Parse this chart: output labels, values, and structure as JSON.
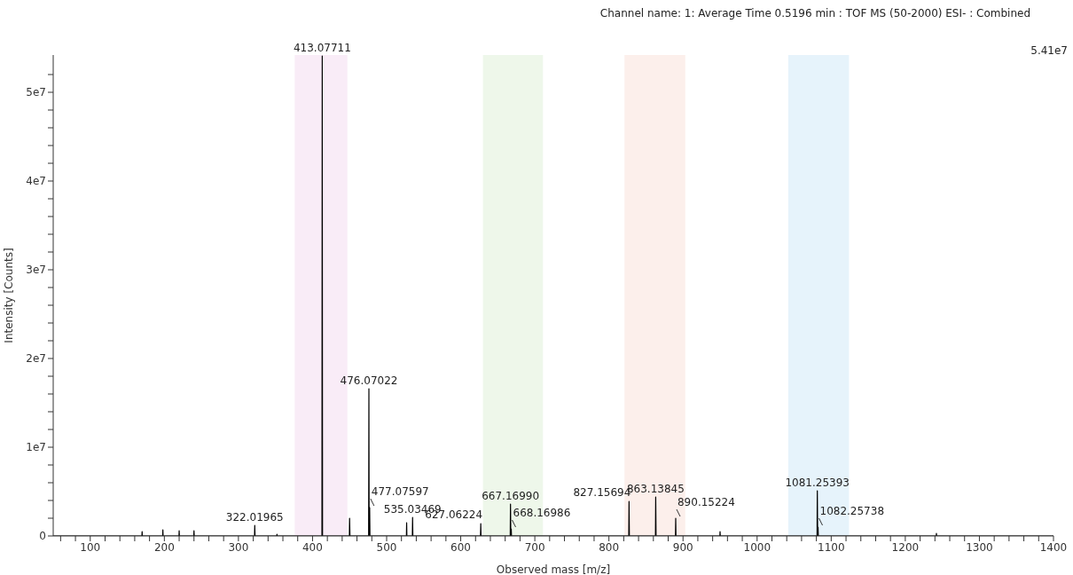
{
  "chart_data": {
    "type": "line",
    "title": "Channel name: 1: Average Time 0.5196 min : TOF MS (50-2000) ESI- : Combined",
    "xlabel": "Observed mass [m/z]",
    "ylabel": "Intensity [Counts]",
    "xlim": [
      50,
      1400
    ],
    "xticks": [
      {
        "value": 60,
        "label": null
      },
      {
        "value": 80,
        "label": null
      },
      100,
      {
        "value": 120,
        "label": null
      },
      {
        "value": 140,
        "label": null
      },
      {
        "value": 160,
        "label": null
      },
      {
        "value": 180,
        "label": null
      },
      200,
      {
        "value": 220,
        "label": null
      },
      {
        "value": 240,
        "label": null
      },
      {
        "value": 260,
        "label": null
      },
      {
        "value": 280,
        "label": null
      },
      300,
      {
        "value": 320,
        "label": null
      },
      {
        "value": 340,
        "label": null
      },
      {
        "value": 360,
        "label": null
      },
      {
        "value": 380,
        "label": null
      },
      400,
      {
        "value": 420,
        "label": null
      },
      {
        "value": 440,
        "label": null
      },
      {
        "value": 460,
        "label": null
      },
      {
        "value": 480,
        "label": null
      },
      500,
      {
        "value": 520,
        "label": null
      },
      {
        "value": 540,
        "label": null
      },
      {
        "value": 560,
        "label": null
      },
      {
        "value": 580,
        "label": null
      },
      600,
      {
        "value": 620,
        "label": null
      },
      {
        "value": 640,
        "label": null
      },
      {
        "value": 660,
        "label": null
      },
      {
        "value": 680,
        "label": null
      },
      700,
      {
        "value": 720,
        "label": null
      },
      {
        "value": 740,
        "label": null
      },
      {
        "value": 760,
        "label": null
      },
      {
        "value": 780,
        "label": null
      },
      800,
      {
        "value": 820,
        "label": null
      },
      {
        "value": 840,
        "label": null
      },
      {
        "value": 860,
        "label": null
      },
      {
        "value": 880,
        "label": null
      },
      900,
      {
        "value": 920,
        "label": null
      },
      {
        "value": 940,
        "label": null
      },
      {
        "value": 960,
        "label": null
      },
      {
        "value": 980,
        "label": null
      },
      1000,
      {
        "value": 1020,
        "label": null
      },
      {
        "value": 1040,
        "label": null
      },
      {
        "value": 1060,
        "label": null
      },
      {
        "value": 1080,
        "label": null
      },
      1100,
      {
        "value": 1120,
        "label": null
      },
      {
        "value": 1140,
        "label": null
      },
      {
        "value": 1160,
        "label": null
      },
      {
        "value": 1180,
        "label": null
      },
      1200,
      {
        "value": 1220,
        "label": null
      },
      {
        "value": 1240,
        "label": null
      },
      {
        "value": 1260,
        "label": null
      },
      {
        "value": 1280,
        "label": null
      },
      1300,
      {
        "value": 1320,
        "label": null
      },
      {
        "value": 1340,
        "label": null
      },
      {
        "value": 1360,
        "label": null
      },
      {
        "value": 1380,
        "label": null
      },
      1400
    ],
    "ylim": [
      0,
      54200000
    ],
    "yticks": [
      0,
      {
        "value": 2000000,
        "label": null
      },
      {
        "value": 4000000,
        "label": null
      },
      {
        "value": 6000000,
        "label": null
      },
      {
        "value": 8000000,
        "label": null
      },
      {
        "value": 10000000,
        "label": "1e7"
      },
      {
        "value": 12000000,
        "label": null
      },
      {
        "value": 14000000,
        "label": null
      },
      {
        "value": 16000000,
        "label": null
      },
      {
        "value": 18000000,
        "label": null
      },
      {
        "value": 20000000,
        "label": "2e7"
      },
      {
        "value": 22000000,
        "label": null
      },
      {
        "value": 24000000,
        "label": null
      },
      {
        "value": 26000000,
        "label": null
      },
      {
        "value": 28000000,
        "label": null
      },
      {
        "value": 30000000,
        "label": "3e7"
      },
      {
        "value": 32000000,
        "label": null
      },
      {
        "value": 34000000,
        "label": null
      },
      {
        "value": 36000000,
        "label": null
      },
      {
        "value": 38000000,
        "label": null
      },
      {
        "value": 40000000,
        "label": "4e7"
      },
      {
        "value": 42000000,
        "label": null
      },
      {
        "value": 44000000,
        "label": null
      },
      {
        "value": 46000000,
        "label": null
      },
      {
        "value": 48000000,
        "label": null
      },
      {
        "value": 50000000,
        "label": "5e7"
      },
      {
        "value": 52000000,
        "label": null
      }
    ],
    "grid": false,
    "legend": false,
    "marker": "none",
    "line_style": "solid",
    "bands": [
      {
        "axis": "x",
        "from": 376,
        "to": 447,
        "color": "#f9ecf7"
      },
      {
        "axis": "x",
        "from": 630,
        "to": 711,
        "color": "#eef7ea"
      },
      {
        "axis": "x",
        "from": 821,
        "to": 903,
        "color": "#fcefeb"
      },
      {
        "axis": "x",
        "from": 1042,
        "to": 1124,
        "color": "#e6f3fb"
      }
    ],
    "series": [
      {
        "color": "#000000",
        "x": [
          50,
          169.7,
          170,
          170.3,
          197.7,
          198,
          198.3,
          219.7,
          220,
          220.3,
          239.7,
          240,
          240.3,
          321.7,
          322.02,
          322.4,
          351.7,
          352,
          352.3,
          412.7,
          413.08,
          413.5,
          449.7,
          450,
          450.5,
          475.7,
          476.07,
          476.4,
          476.8,
          477.08,
          477.5,
          526.7,
          527,
          527.3,
          534.7,
          535.03,
          535.4,
          626.7,
          627.06,
          627.4,
          666.8,
          667.17,
          667.6,
          667.9,
          668.17,
          668.5,
          826.8,
          827.16,
          827.6,
          862.8,
          863.14,
          863.6,
          889.8,
          890.15,
          890.5,
          949.7,
          950,
          950.3,
          1080.9,
          1081.25,
          1081.7,
          1081.9,
          1082.26,
          1082.6,
          1241.7,
          1242,
          1242.3,
          1400
        ],
        "values": [
          0,
          0,
          500000,
          0,
          0,
          700000,
          0,
          0,
          600000,
          0,
          0,
          600000,
          0,
          0,
          1200000,
          0,
          0,
          200000,
          0,
          0,
          54100000,
          0,
          0,
          2000000,
          0,
          0,
          16600000,
          0,
          0,
          3200000,
          0,
          0,
          1500000,
          0,
          0,
          2100000,
          0,
          0,
          1400000,
          0,
          0,
          3600000,
          0,
          0,
          800000,
          0,
          0,
          3900000,
          0,
          0,
          4400000,
          0,
          0,
          2000000,
          0,
          0,
          500000,
          0,
          0,
          5100000,
          0,
          0,
          1000000,
          0,
          0,
          300000,
          0,
          0
        ]
      }
    ],
    "annotations": [
      "5.41e7",
      {
        "text": "322.01965",
        "x": 322.02,
        "y": 1200000
      },
      {
        "text": "413.07711",
        "x": 413.08,
        "y": 54100000
      },
      {
        "text": "476.07022",
        "x": 476.07,
        "y": 16600000
      },
      {
        "text": "477.07597",
        "x": 477.08,
        "y": 3200000
      },
      {
        "text": "535.03469",
        "x": 535.03,
        "y": 2100000
      },
      {
        "text": "627.06224",
        "x": 627.06,
        "y": 1400000
      },
      {
        "text": "667.16990",
        "x": 667.17,
        "y": 3600000
      },
      {
        "text": "668.16986",
        "x": 668.17,
        "y": 800000
      },
      {
        "text": "827.15694",
        "x": 827.16,
        "y": 3900000
      },
      {
        "text": "863.13845",
        "x": 863.14,
        "y": 4400000
      },
      {
        "text": "890.15224",
        "x": 890.15,
        "y": 2000000
      },
      {
        "text": "1081.25393",
        "x": 1081.25,
        "y": 5100000
      },
      {
        "text": "1082.25738",
        "x": 1082.26,
        "y": 1000000
      }
    ]
  }
}
